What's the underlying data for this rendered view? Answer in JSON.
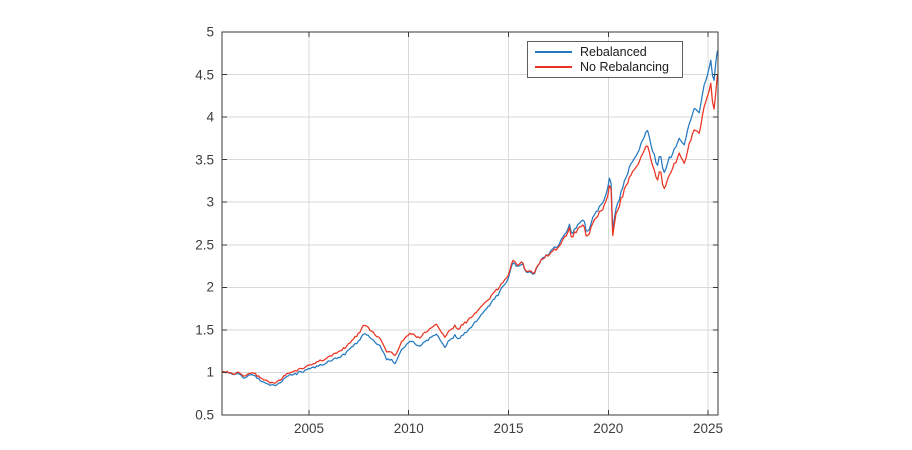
{
  "figure": {
    "background": "#ffffff"
  },
  "colors": {
    "series_rebalanced": "#2579c1",
    "series_no_rebalancing": "#ea3423",
    "grid": "#d9d9d9",
    "axis_box": "#3a3a3a",
    "tick_label": "#3d3d3d",
    "legend_border": "#5f5f5f"
  },
  "legend": {
    "items": [
      {
        "label": "Rebalanced",
        "color": "#2579c1"
      },
      {
        "label": "No Rebalancing",
        "color": "#ea3423"
      }
    ]
  },
  "chart_data": {
    "type": "line",
    "title": "",
    "xlabel": "",
    "ylabel": "",
    "grid": true,
    "legend_position": "top-right-inside",
    "xlim": [
      2000.64,
      2025.5
    ],
    "ylim": [
      0.5,
      5
    ],
    "x_ticks": [
      2005,
      2010,
      2015,
      2020,
      2025
    ],
    "y_ticks": [
      0.5,
      1,
      1.5,
      2,
      2.5,
      3,
      3.5,
      4,
      4.5,
      5
    ],
    "series": [
      {
        "name": "Rebalanced",
        "color": "#2579c1",
        "points": [
          [
            2000.64,
            1.0
          ],
          [
            2000.9,
            1.0
          ],
          [
            2001.2,
            0.97
          ],
          [
            2001.5,
            0.99
          ],
          [
            2001.75,
            0.93
          ],
          [
            2002.0,
            0.97
          ],
          [
            2002.3,
            0.96
          ],
          [
            2002.6,
            0.89
          ],
          [
            2002.85,
            0.87
          ],
          [
            2003.1,
            0.85
          ],
          [
            2003.25,
            0.84
          ],
          [
            2003.5,
            0.88
          ],
          [
            2003.8,
            0.93
          ],
          [
            2004.1,
            0.97
          ],
          [
            2004.4,
            0.99
          ],
          [
            2004.7,
            1.01
          ],
          [
            2005.0,
            1.05
          ],
          [
            2005.4,
            1.07
          ],
          [
            2005.8,
            1.1
          ],
          [
            2006.2,
            1.15
          ],
          [
            2006.6,
            1.18
          ],
          [
            2007.0,
            1.26
          ],
          [
            2007.4,
            1.35
          ],
          [
            2007.8,
            1.46
          ],
          [
            2008.0,
            1.42
          ],
          [
            2008.3,
            1.36
          ],
          [
            2008.6,
            1.3
          ],
          [
            2008.9,
            1.14
          ],
          [
            2009.1,
            1.16
          ],
          [
            2009.3,
            1.1
          ],
          [
            2009.6,
            1.25
          ],
          [
            2009.9,
            1.34
          ],
          [
            2010.2,
            1.37
          ],
          [
            2010.5,
            1.3
          ],
          [
            2010.8,
            1.36
          ],
          [
            2011.1,
            1.41
          ],
          [
            2011.4,
            1.44
          ],
          [
            2011.8,
            1.3
          ],
          [
            2012.0,
            1.36
          ],
          [
            2012.3,
            1.43
          ],
          [
            2012.5,
            1.4
          ],
          [
            2012.8,
            1.46
          ],
          [
            2013.2,
            1.55
          ],
          [
            2013.6,
            1.66
          ],
          [
            2014.0,
            1.78
          ],
          [
            2014.4,
            1.9
          ],
          [
            2014.8,
            2.02
          ],
          [
            2015.0,
            2.12
          ],
          [
            2015.2,
            2.3
          ],
          [
            2015.45,
            2.24
          ],
          [
            2015.7,
            2.27
          ],
          [
            2015.9,
            2.16
          ],
          [
            2016.1,
            2.2
          ],
          [
            2016.25,
            2.14
          ],
          [
            2016.5,
            2.28
          ],
          [
            2016.8,
            2.35
          ],
          [
            2017.1,
            2.42
          ],
          [
            2017.5,
            2.5
          ],
          [
            2017.9,
            2.65
          ],
          [
            2018.05,
            2.74
          ],
          [
            2018.15,
            2.62
          ],
          [
            2018.5,
            2.74
          ],
          [
            2018.75,
            2.8
          ],
          [
            2018.95,
            2.62
          ],
          [
            2019.2,
            2.8
          ],
          [
            2019.5,
            2.93
          ],
          [
            2019.8,
            3.02
          ],
          [
            2020.0,
            3.2
          ],
          [
            2020.12,
            3.37
          ],
          [
            2020.22,
            2.68
          ],
          [
            2020.35,
            2.9
          ],
          [
            2020.6,
            3.08
          ],
          [
            2020.85,
            3.28
          ],
          [
            2021.1,
            3.42
          ],
          [
            2021.45,
            3.58
          ],
          [
            2021.7,
            3.7
          ],
          [
            2021.95,
            3.88
          ],
          [
            2022.1,
            3.72
          ],
          [
            2022.3,
            3.55
          ],
          [
            2022.45,
            3.42
          ],
          [
            2022.6,
            3.58
          ],
          [
            2022.78,
            3.32
          ],
          [
            2023.0,
            3.48
          ],
          [
            2023.3,
            3.62
          ],
          [
            2023.55,
            3.74
          ],
          [
            2023.8,
            3.66
          ],
          [
            2024.0,
            3.88
          ],
          [
            2024.25,
            4.06
          ],
          [
            2024.45,
            4.12
          ],
          [
            2024.55,
            4.02
          ],
          [
            2024.75,
            4.3
          ],
          [
            2024.95,
            4.5
          ],
          [
            2025.05,
            4.58
          ],
          [
            2025.15,
            4.65
          ],
          [
            2025.28,
            4.38
          ],
          [
            2025.38,
            4.6
          ],
          [
            2025.47,
            4.78
          ]
        ]
      },
      {
        "name": "No Rebalancing",
        "color": "#ea3423",
        "points": [
          [
            2000.64,
            1.0
          ],
          [
            2000.9,
            1.01
          ],
          [
            2001.2,
            0.98
          ],
          [
            2001.5,
            1.0
          ],
          [
            2001.75,
            0.95
          ],
          [
            2002.0,
            0.99
          ],
          [
            2002.3,
            0.98
          ],
          [
            2002.6,
            0.92
          ],
          [
            2002.85,
            0.9
          ],
          [
            2003.1,
            0.88
          ],
          [
            2003.25,
            0.87
          ],
          [
            2003.5,
            0.91
          ],
          [
            2003.8,
            0.96
          ],
          [
            2004.1,
            1.0
          ],
          [
            2004.4,
            1.02
          ],
          [
            2004.7,
            1.05
          ],
          [
            2005.0,
            1.09
          ],
          [
            2005.4,
            1.12
          ],
          [
            2005.8,
            1.15
          ],
          [
            2006.2,
            1.21
          ],
          [
            2006.6,
            1.25
          ],
          [
            2007.0,
            1.33
          ],
          [
            2007.4,
            1.44
          ],
          [
            2007.8,
            1.56
          ],
          [
            2008.0,
            1.51
          ],
          [
            2008.3,
            1.45
          ],
          [
            2008.6,
            1.39
          ],
          [
            2008.9,
            1.23
          ],
          [
            2009.1,
            1.25
          ],
          [
            2009.3,
            1.19
          ],
          [
            2009.6,
            1.34
          ],
          [
            2009.9,
            1.43
          ],
          [
            2010.2,
            1.46
          ],
          [
            2010.5,
            1.4
          ],
          [
            2010.8,
            1.46
          ],
          [
            2011.1,
            1.52
          ],
          [
            2011.4,
            1.55
          ],
          [
            2011.8,
            1.42
          ],
          [
            2012.0,
            1.48
          ],
          [
            2012.3,
            1.55
          ],
          [
            2012.5,
            1.52
          ],
          [
            2012.8,
            1.58
          ],
          [
            2013.2,
            1.66
          ],
          [
            2013.6,
            1.76
          ],
          [
            2014.0,
            1.86
          ],
          [
            2014.4,
            1.97
          ],
          [
            2014.8,
            2.07
          ],
          [
            2015.0,
            2.16
          ],
          [
            2015.2,
            2.33
          ],
          [
            2015.45,
            2.26
          ],
          [
            2015.7,
            2.29
          ],
          [
            2015.9,
            2.18
          ],
          [
            2016.1,
            2.21
          ],
          [
            2016.25,
            2.15
          ],
          [
            2016.5,
            2.28
          ],
          [
            2016.8,
            2.34
          ],
          [
            2017.1,
            2.4
          ],
          [
            2017.5,
            2.47
          ],
          [
            2017.9,
            2.61
          ],
          [
            2018.05,
            2.7
          ],
          [
            2018.15,
            2.58
          ],
          [
            2018.5,
            2.69
          ],
          [
            2018.75,
            2.74
          ],
          [
            2018.95,
            2.57
          ],
          [
            2019.2,
            2.74
          ],
          [
            2019.5,
            2.86
          ],
          [
            2019.8,
            2.95
          ],
          [
            2020.0,
            3.12
          ],
          [
            2020.12,
            3.3
          ],
          [
            2020.22,
            2.62
          ],
          [
            2020.35,
            2.83
          ],
          [
            2020.6,
            3.0
          ],
          [
            2020.85,
            3.18
          ],
          [
            2021.1,
            3.3
          ],
          [
            2021.45,
            3.44
          ],
          [
            2021.7,
            3.55
          ],
          [
            2021.95,
            3.7
          ],
          [
            2022.1,
            3.55
          ],
          [
            2022.3,
            3.38
          ],
          [
            2022.45,
            3.25
          ],
          [
            2022.6,
            3.4
          ],
          [
            2022.78,
            3.12
          ],
          [
            2023.0,
            3.28
          ],
          [
            2023.3,
            3.44
          ],
          [
            2023.55,
            3.56
          ],
          [
            2023.8,
            3.44
          ],
          [
            2024.0,
            3.64
          ],
          [
            2024.25,
            3.82
          ],
          [
            2024.45,
            3.88
          ],
          [
            2024.55,
            3.78
          ],
          [
            2024.75,
            4.05
          ],
          [
            2024.95,
            4.25
          ],
          [
            2025.05,
            4.3
          ],
          [
            2025.15,
            4.38
          ],
          [
            2025.28,
            4.02
          ],
          [
            2025.38,
            4.25
          ],
          [
            2025.47,
            4.5
          ]
        ]
      }
    ]
  }
}
